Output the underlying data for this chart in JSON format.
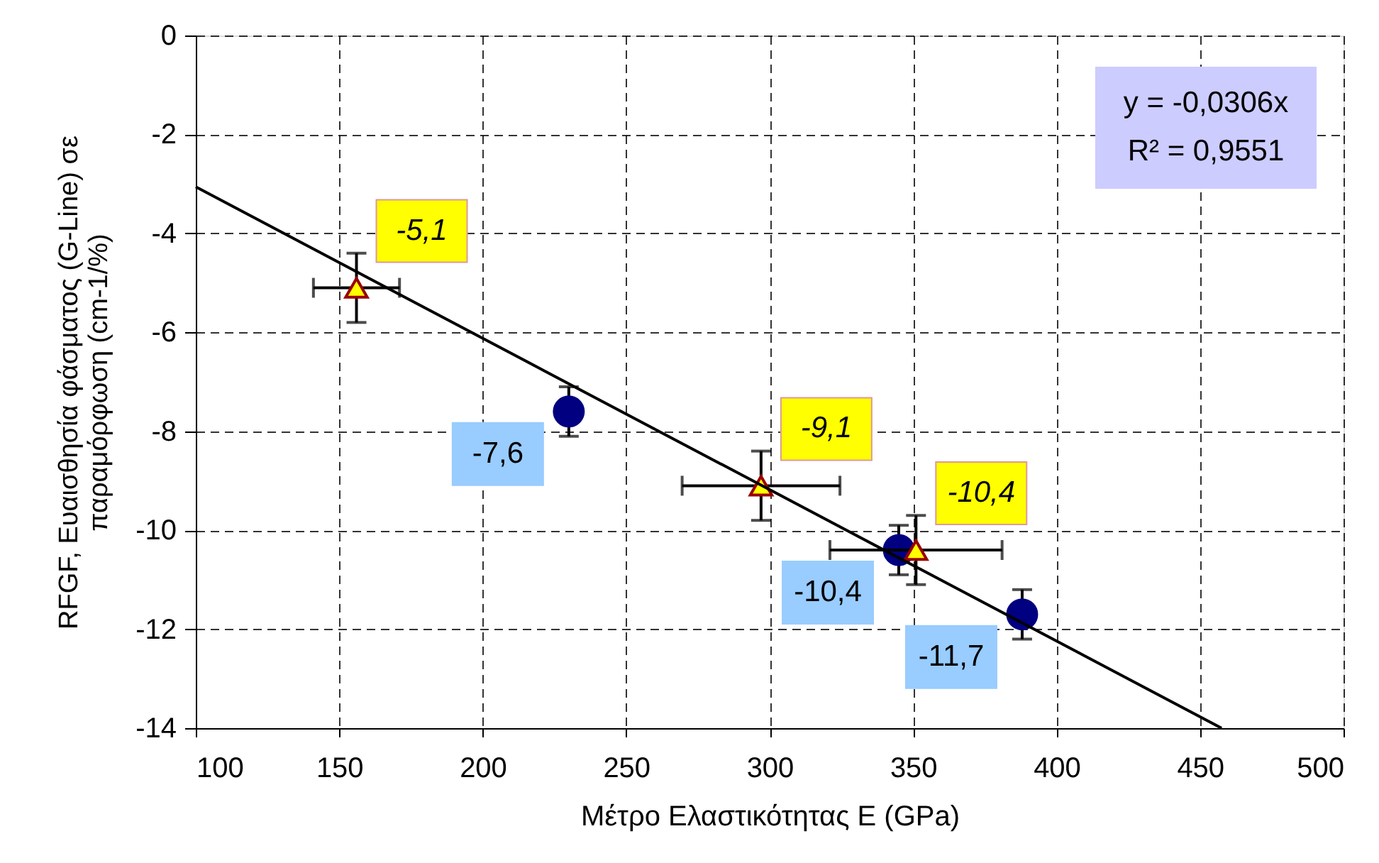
{
  "chart_data": {
    "type": "scatter",
    "xlabel": "Μέτρο Ελαστικότητας E (GPa)",
    "ylabel": "RFGF, Ευαισθησία φάσματος (G-Line) σε\nπαραμόρφωση (cm-1/%)",
    "xlim": [
      100,
      500
    ],
    "xticks": [
      100,
      150,
      200,
      250,
      300,
      350,
      400,
      450,
      500
    ],
    "ylim": [
      -14,
      0
    ],
    "yticks": [
      -14,
      -12,
      -10,
      -8,
      -6,
      -4,
      -2,
      0
    ],
    "grid": true,
    "annotations": [
      "y = -0,0306x",
      "R² = 0,9551"
    ],
    "series": [
      {
        "marker": "circle",
        "color": "#000080",
        "x": [
          230,
          345,
          388
        ],
        "values": [
          -7.6,
          -10.4,
          -11.7
        ],
        "errors": [
          0.5,
          0.5,
          0.5
        ],
        "value_labels": [
          "-7,6",
          "-10,4",
          "-11,7"
        ]
      },
      {
        "marker": "triangle",
        "color": "#ffff00",
        "x": [
          156,
          297,
          351
        ],
        "values": [
          -5.1,
          -9.1,
          -10.4
        ],
        "errors": [
          0.7,
          0.7,
          0.7
        ],
        "xerrors": [
          15,
          27.5,
          30
        ],
        "value_labels": [
          "-5,1",
          "-9,1",
          "-10,4"
        ]
      },
      {
        "type": "line",
        "color": "#000000",
        "x": [
          100,
          457.5
        ],
        "values": [
          -3.06,
          -14.0
        ],
        "line_style": "solid",
        "marker": "none"
      }
    ]
  }
}
